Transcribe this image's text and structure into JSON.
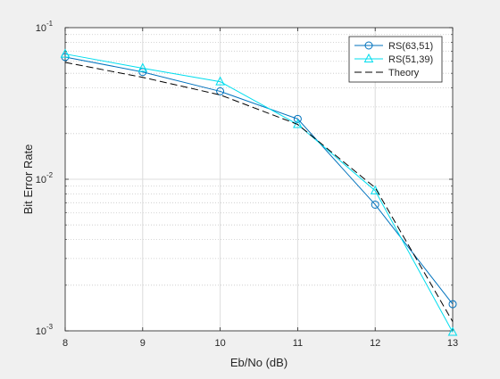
{
  "chart_data": {
    "type": "line",
    "title": "",
    "xlabel": "Eb/No (dB)",
    "ylabel": "Bit Error Rate",
    "xscale": "linear",
    "yscale": "log",
    "xlim": [
      8,
      13
    ],
    "ylim": [
      0.001,
      0.1
    ],
    "xticks": [
      8,
      9,
      10,
      11,
      12,
      13
    ],
    "xtick_labels": [
      "8",
      "9",
      "10",
      "11",
      "12",
      "13"
    ],
    "yticks": [
      0.001,
      0.01,
      0.1
    ],
    "ytick_labels": [
      {
        "base": "10",
        "exp": "-3"
      },
      {
        "base": "10",
        "exp": "-2"
      },
      {
        "base": "10",
        "exp": "-1"
      }
    ],
    "grid": true,
    "minor_grid": true,
    "legend_position": "top-right",
    "series": [
      {
        "name": "RS(63,51)",
        "color": "#0072BD",
        "line_style": "solid",
        "marker": "circle",
        "x": [
          8,
          9,
          10,
          11,
          12,
          13
        ],
        "y": [
          0.064,
          0.051,
          0.038,
          0.025,
          0.0068,
          0.0015
        ]
      },
      {
        "name": "RS(51,39)",
        "color": "#00DDEE",
        "line_style": "solid",
        "marker": "triangle",
        "x": [
          8,
          9,
          10,
          11,
          12,
          13
        ],
        "y": [
          0.067,
          0.054,
          0.044,
          0.023,
          0.0084,
          0.00098
        ]
      },
      {
        "name": "Theory",
        "color": "#000000",
        "line_style": "dashed",
        "marker": "none",
        "x": [
          8,
          9,
          10,
          11,
          12,
          13
        ],
        "y": [
          0.059,
          0.047,
          0.036,
          0.023,
          0.0088,
          0.00115
        ]
      }
    ]
  }
}
